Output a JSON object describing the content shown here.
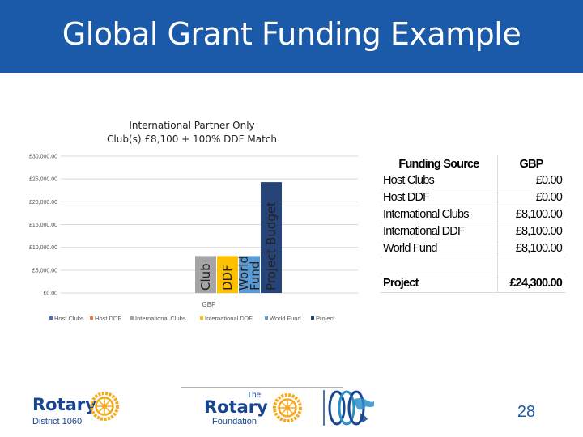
{
  "slide": {
    "title": "Global Grant Funding Example",
    "page_number": "28"
  },
  "chart_data": {
    "type": "bar",
    "title_lines": [
      "International Partner Only",
      "Club(s) £8,100 + 100% DDF Match"
    ],
    "categories": [
      "GBP"
    ],
    "y_ticks": [
      "£0.00",
      "£5,000.00",
      "£10,000.00",
      "£15,000.00",
      "£20,000.00",
      "£25,000.00",
      "£30,000.00"
    ],
    "ylim": [
      0,
      30000
    ],
    "grid": true,
    "legend_position": "bottom",
    "series": [
      {
        "name": "Host Clubs",
        "values": [
          0
        ],
        "color": "#4472c4"
      },
      {
        "name": "Host DDF",
        "values": [
          0
        ],
        "color": "#ed7d31"
      },
      {
        "name": "International Clubs",
        "values": [
          8100
        ],
        "color": "#a5a5a5",
        "label": "Club"
      },
      {
        "name": "International DDF",
        "values": [
          8100
        ],
        "color": "#ffc000",
        "label": "DDF"
      },
      {
        "name": "World Fund",
        "values": [
          8100
        ],
        "color": "#5b9bd5",
        "label": "World Fund"
      },
      {
        "name": "Project",
        "values": [
          24300
        ],
        "color": "#264478",
        "label": "Project Budget"
      }
    ]
  },
  "table": {
    "headers": [
      "Funding Source",
      "GBP"
    ],
    "rows": [
      [
        "Host Clubs",
        "£0.00"
      ],
      [
        "Host DDF",
        "£0.00"
      ],
      [
        "International Clubs",
        "£8,100.00"
      ],
      [
        "International DDF",
        "£8,100.00"
      ],
      [
        "World Fund",
        "£8,100.00"
      ],
      [
        "",
        ""
      ]
    ],
    "total": [
      "Project",
      "£24,300.00"
    ]
  },
  "logos": {
    "district": {
      "brand": "Rotary",
      "sub": "District 1060"
    },
    "foundation": {
      "top": "The",
      "brand": "Rotary",
      "sub": "Foundation"
    }
  },
  "colors": {
    "title_bar": "#1a5aa8",
    "rotary_blue": "#17458f",
    "rotary_gold": "#f7a81b"
  }
}
